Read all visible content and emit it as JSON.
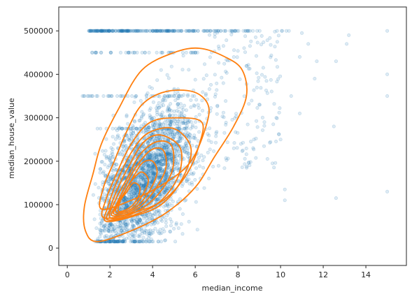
{
  "chart_data": {
    "type": "scatter",
    "title": "",
    "xlabel": "median_income",
    "ylabel": "median_house_value",
    "xlim": [
      -0.4,
      15.9
    ],
    "ylim": [
      -40000,
      555000
    ],
    "xticks": [
      0,
      2,
      4,
      6,
      8,
      10,
      12,
      14
    ],
    "yticks": [
      0,
      100000,
      200000,
      300000,
      400000,
      500000
    ],
    "grid": false,
    "legend": "none",
    "colors": {
      "points": "#1f77b4",
      "contours": "#ff7f0e",
      "frame": "#262626"
    },
    "points_alpha": 0.15,
    "scatter_summary": {
      "bulk_center": [
        3.8,
        205000
      ],
      "bulk_spread": [
        1.6,
        110000
      ],
      "cap_value": 500001,
      "ceiling_rows": [
        350000,
        450000,
        275000
      ],
      "outliers": [
        [
          15.0,
          500000
        ],
        [
          15.0,
          400000
        ],
        [
          15.0,
          350000
        ],
        [
          15.0,
          130000
        ],
        [
          13.1,
          470000
        ],
        [
          13.2,
          490000
        ],
        [
          12.6,
          430000
        ],
        [
          12.5,
          280000
        ],
        [
          12.6,
          115000
        ],
        [
          11.7,
          430000
        ],
        [
          11.6,
          390000
        ],
        [
          11.0,
          495000
        ],
        [
          10.9,
          440000
        ],
        [
          10.9,
          310000
        ],
        [
          10.2,
          135000
        ],
        [
          10.2,
          110000
        ],
        [
          10.5,
          350000
        ],
        [
          9.8,
          300000
        ],
        [
          10.0,
          250000
        ],
        [
          11.3,
          470000
        ]
      ]
    },
    "contours": [
      [
        [
          0.85,
          40000
        ],
        [
          1.4,
          15000
        ],
        [
          3.0,
          40000
        ],
        [
          4.6,
          80000
        ],
        [
          6.0,
          140000
        ],
        [
          6.9,
          210000
        ],
        [
          7.8,
          280000
        ],
        [
          8.4,
          350000
        ],
        [
          8.2,
          410000
        ],
        [
          7.4,
          440000
        ],
        [
          6.2,
          460000
        ],
        [
          5.0,
          450000
        ],
        [
          3.5,
          410000
        ],
        [
          2.4,
          320000
        ],
        [
          1.6,
          240000
        ],
        [
          1.2,
          170000
        ],
        [
          0.8,
          95000
        ]
      ],
      [
        [
          1.6,
          90000
        ],
        [
          3.0,
          110000
        ],
        [
          4.6,
          150000
        ],
        [
          5.8,
          200000
        ],
        [
          6.5,
          280000
        ],
        [
          6.6,
          330000
        ],
        [
          5.9,
          360000
        ],
        [
          4.6,
          360000
        ],
        [
          3.5,
          330000
        ],
        [
          2.8,
          270000
        ],
        [
          2.2,
          200000
        ],
        [
          1.7,
          140000
        ]
      ],
      [
        [
          1.7,
          70000
        ],
        [
          3.0,
          80000
        ],
        [
          4.5,
          110000
        ],
        [
          5.6,
          170000
        ],
        [
          6.2,
          240000
        ],
        [
          6.3,
          290000
        ],
        [
          5.2,
          300000
        ],
        [
          3.9,
          290000
        ],
        [
          3.0,
          240000
        ],
        [
          2.3,
          170000
        ],
        [
          1.8,
          110000
        ]
      ],
      [
        [
          1.8,
          62000
        ],
        [
          3.0,
          72000
        ],
        [
          4.4,
          100000
        ],
        [
          5.4,
          160000
        ],
        [
          5.8,
          230000
        ],
        [
          5.0,
          275000
        ],
        [
          3.8,
          265000
        ],
        [
          3.0,
          220000
        ],
        [
          2.3,
          150000
        ],
        [
          1.9,
          95000
        ]
      ],
      [
        [
          1.9,
          65000
        ],
        [
          3.0,
          74000
        ],
        [
          4.3,
          105000
        ],
        [
          5.2,
          165000
        ],
        [
          5.3,
          230000
        ],
        [
          4.4,
          260000
        ],
        [
          3.6,
          245000
        ],
        [
          2.9,
          190000
        ],
        [
          2.3,
          130000
        ],
        [
          2.0,
          90000
        ]
      ],
      [
        [
          2.0,
          70000
        ],
        [
          3.0,
          78000
        ],
        [
          4.1,
          115000
        ],
        [
          4.9,
          175000
        ],
        [
          4.9,
          235000
        ],
        [
          4.2,
          245000
        ],
        [
          3.4,
          215000
        ],
        [
          2.8,
          160000
        ],
        [
          2.3,
          115000
        ]
      ],
      [
        [
          2.1,
          75000
        ],
        [
          3.0,
          82000
        ],
        [
          3.9,
          120000
        ],
        [
          4.6,
          180000
        ],
        [
          4.5,
          225000
        ],
        [
          3.9,
          225000
        ],
        [
          3.2,
          185000
        ],
        [
          2.7,
          140000
        ],
        [
          2.3,
          100000
        ]
      ],
      [
        [
          2.2,
          78000
        ],
        [
          3.0,
          86000
        ],
        [
          3.7,
          120000
        ],
        [
          4.2,
          170000
        ],
        [
          4.0,
          200000
        ],
        [
          3.5,
          195000
        ],
        [
          3.0,
          155000
        ],
        [
          2.6,
          120000
        ],
        [
          2.3,
          95000
        ]
      ],
      [
        [
          2.3,
          82000
        ],
        [
          3.0,
          90000
        ],
        [
          3.5,
          120000
        ],
        [
          3.8,
          155000
        ],
        [
          3.5,
          175000
        ],
        [
          3.1,
          160000
        ],
        [
          2.7,
          130000
        ],
        [
          2.4,
          105000
        ]
      ],
      [
        [
          2.4,
          85000
        ],
        [
          2.9,
          92000
        ],
        [
          3.3,
          115000
        ],
        [
          3.4,
          140000
        ],
        [
          3.1,
          150000
        ],
        [
          2.8,
          130000
        ],
        [
          2.5,
          110000
        ]
      ]
    ]
  }
}
